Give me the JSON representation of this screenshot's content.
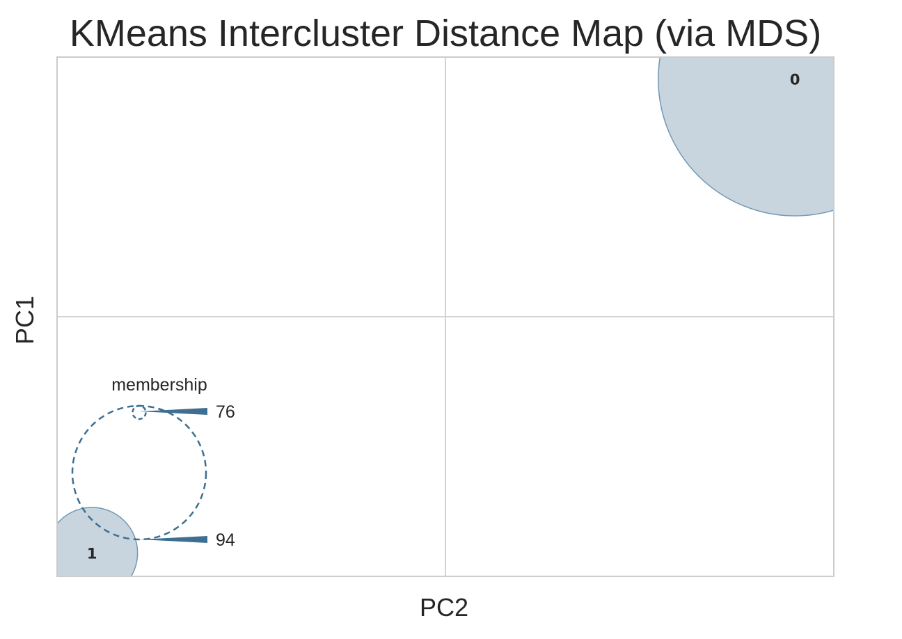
{
  "chart_data": {
    "type": "scatter",
    "title": "KMeans Intercluster Distance Map (via MDS)",
    "xlabel": "PC2",
    "ylabel": "PC1",
    "xlim": [
      -1,
      1
    ],
    "ylim": [
      -1,
      1
    ],
    "grid": true,
    "legend": "bottom-left",
    "points": [
      {
        "label": "0",
        "x": 0.9,
        "y": 0.915,
        "size": 90
      },
      {
        "label": "1",
        "x": -0.91,
        "y": -0.91,
        "size": 10
      }
    ],
    "membership_legend": {
      "title": "membership",
      "sizes": [
        76,
        94
      ]
    },
    "colors": {
      "fill": "#c8d5df",
      "edge": "#6e98b3",
      "legend": "#3e6f91",
      "grid": "#d3d3d3",
      "frame": "#cccccc"
    }
  }
}
